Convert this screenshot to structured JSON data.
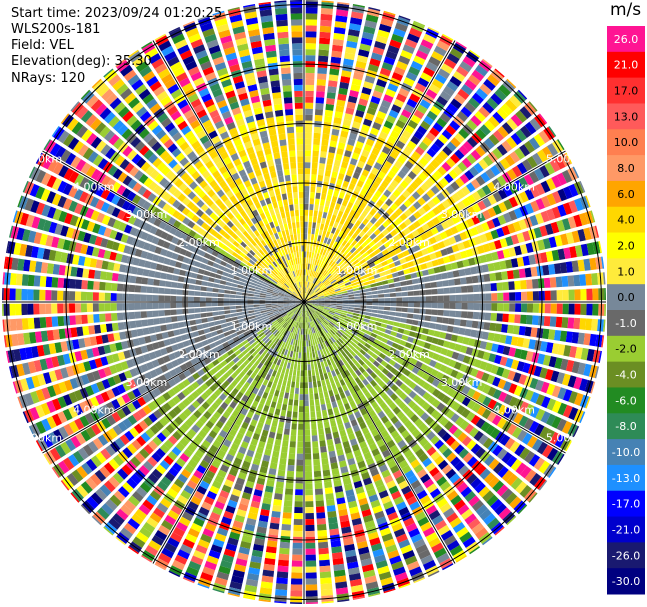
{
  "header": {
    "start_time": "Start time: 2023/09/24 01:20:25",
    "station": "WLS200s-181",
    "field": "Field: VEL",
    "elevation": "Elevation(deg): 35.30",
    "nrays": "NRays: 120"
  },
  "chart_data": {
    "type": "heatmap",
    "projection": "polar PPI",
    "field": "VEL",
    "unit": "m/s",
    "n_rays": 120,
    "range_rings_km": [
      "1.00km",
      "2.00km",
      "3.00km",
      "4.00km",
      "5.00km"
    ],
    "ring_label_bearings_deg": [
      -62,
      62,
      118,
      -118
    ],
    "colorbar": {
      "title": "m/s",
      "ticks": [
        "26.0",
        "21.0",
        "17.0",
        "13.0",
        "10.0",
        "8.0",
        "6.0",
        "4.0",
        "2.0",
        "1.0",
        "0.0",
        "-1.0",
        "-2.0",
        "-4.0",
        "-6.0",
        "-8.0",
        "-10.0",
        "-13.0",
        "-17.0",
        "-21.0",
        "-26.0",
        "-30.0"
      ],
      "colors": [
        "#ff1493",
        "#ff0000",
        "#ff3030",
        "#ff5a5a",
        "#ff7f50",
        "#ff9966",
        "#ffa500",
        "#ffd700",
        "#ffff00",
        "#ffeb3b",
        "#778899",
        "#696969",
        "#9acd32",
        "#6b8e23",
        "#228b22",
        "#2e8b57",
        "#4682b4",
        "#1e90ff",
        "#0000ff",
        "#0000cd",
        "#191970",
        "#000080"
      ]
    },
    "color_scheme_by_range": {
      "inner_0_3km": "mostly approaching (yellow, +1 to +4 m/s) in the north and receding (green, -1 to -4 m/s) in the south, grey near-zero bands east-west",
      "outer_3_5km": "noisy scattered values across full range"
    }
  }
}
